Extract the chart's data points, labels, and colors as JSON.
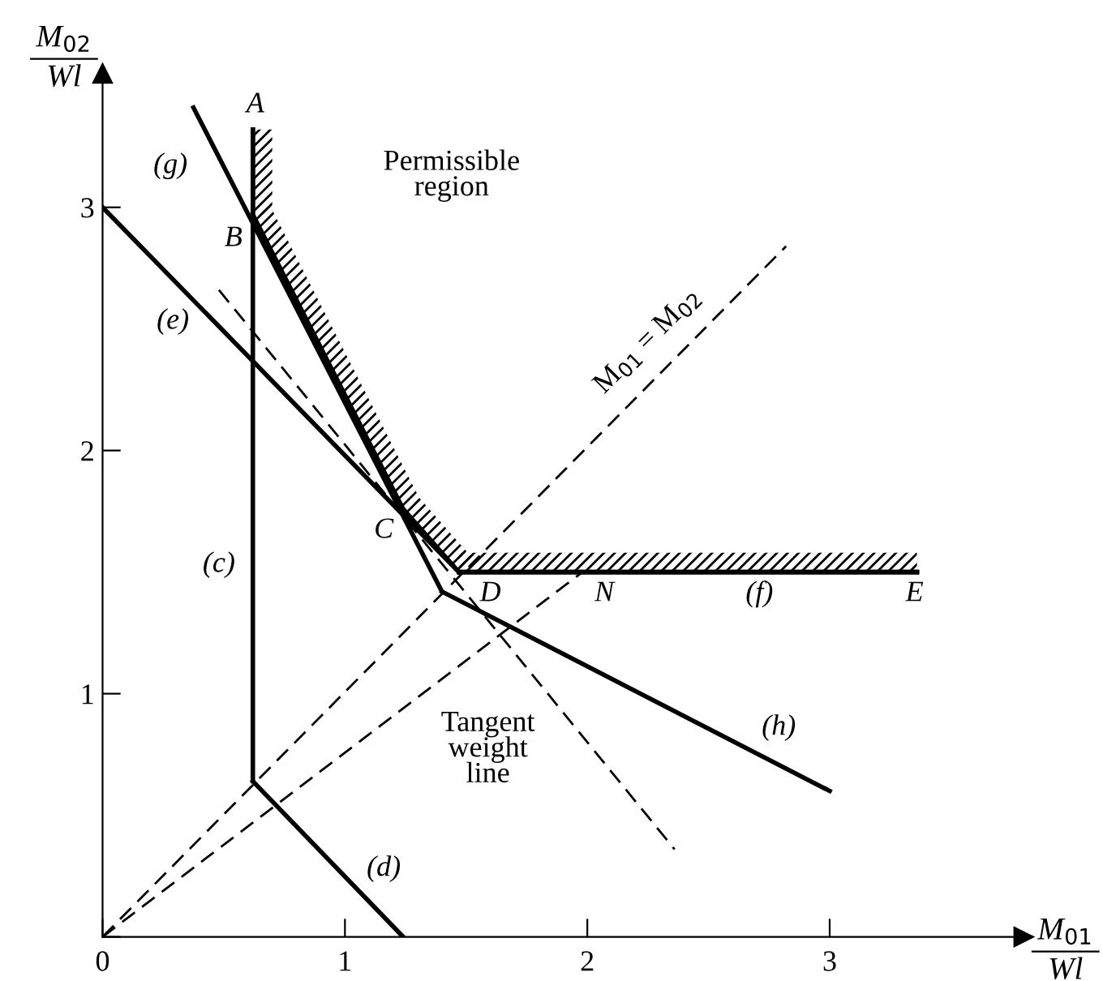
{
  "chart_data": {
    "type": "line",
    "xlabel": "M$_{01}$\nWl",
    "ylabel": "M$_{02}$\nWl",
    "xlim": [
      0,
      3.8
    ],
    "ylim": [
      0,
      3.55
    ],
    "xticks": [
      0,
      1,
      2,
      3
    ],
    "yticks": [
      {
        "value": 0,
        "label": null
      },
      1,
      2,
      3
    ],
    "grid": false,
    "marker": "none",
    "series": [
      {
        "color": "#000000",
        "line_style": "solid",
        "x": [
          0.62,
          0.62
        ],
        "values": [
          0.64,
          3.32
        ]
      },
      {
        "color": "#000000",
        "line_style": "solid",
        "x": [
          0.62,
          1.24
        ],
        "values": [
          0.64,
          0
        ]
      },
      {
        "color": "#000000",
        "line_style": "solid",
        "x": [
          0,
          1.47
        ],
        "values": [
          3,
          1.5
        ]
      },
      {
        "color": "#000000",
        "line_style": "solid",
        "x": [
          1.47,
          3.36
        ],
        "values": [
          1.5,
          1.5
        ]
      },
      {
        "color": "#000000",
        "line_style": "solid",
        "x": [
          0.375,
          1.4
        ],
        "values": [
          3.41,
          1.42
        ]
      },
      {
        "color": "#000000",
        "line_style": "solid",
        "x": [
          1.4,
          3.0
        ],
        "values": [
          1.42,
          0.6
        ]
      },
      {
        "color": "#000000",
        "line_style": "solid",
        "x": [
          0.62,
          0.62,
          1.24,
          1.47,
          3.36
        ],
        "values": [
          3.32,
          2.97,
          1.76,
          1.5,
          1.5
        ]
      },
      {
        "color": "#000000",
        "line_style": "dashed",
        "x": [
          0,
          2.82
        ],
        "values": [
          0,
          2.84
        ]
      },
      {
        "color": "#000000",
        "line_style": "dashed",
        "x": [
          0,
          1.98
        ],
        "values": [
          0,
          1.5
        ]
      },
      {
        "color": "#000000",
        "line_style": "dashed",
        "x": [
          0.48,
          2.36
        ],
        "values": [
          2.66,
          0.36
        ]
      }
    ],
    "annotations": [
      "A",
      "B",
      "(g)",
      "(e)",
      "(c)",
      "(d)",
      "C",
      "D",
      "N",
      "(f)",
      "E",
      "(h)",
      "Permissible\nregion",
      "Tangent\nweight\nline",
      "M$_{01}$ = M$_{02}$"
    ]
  }
}
